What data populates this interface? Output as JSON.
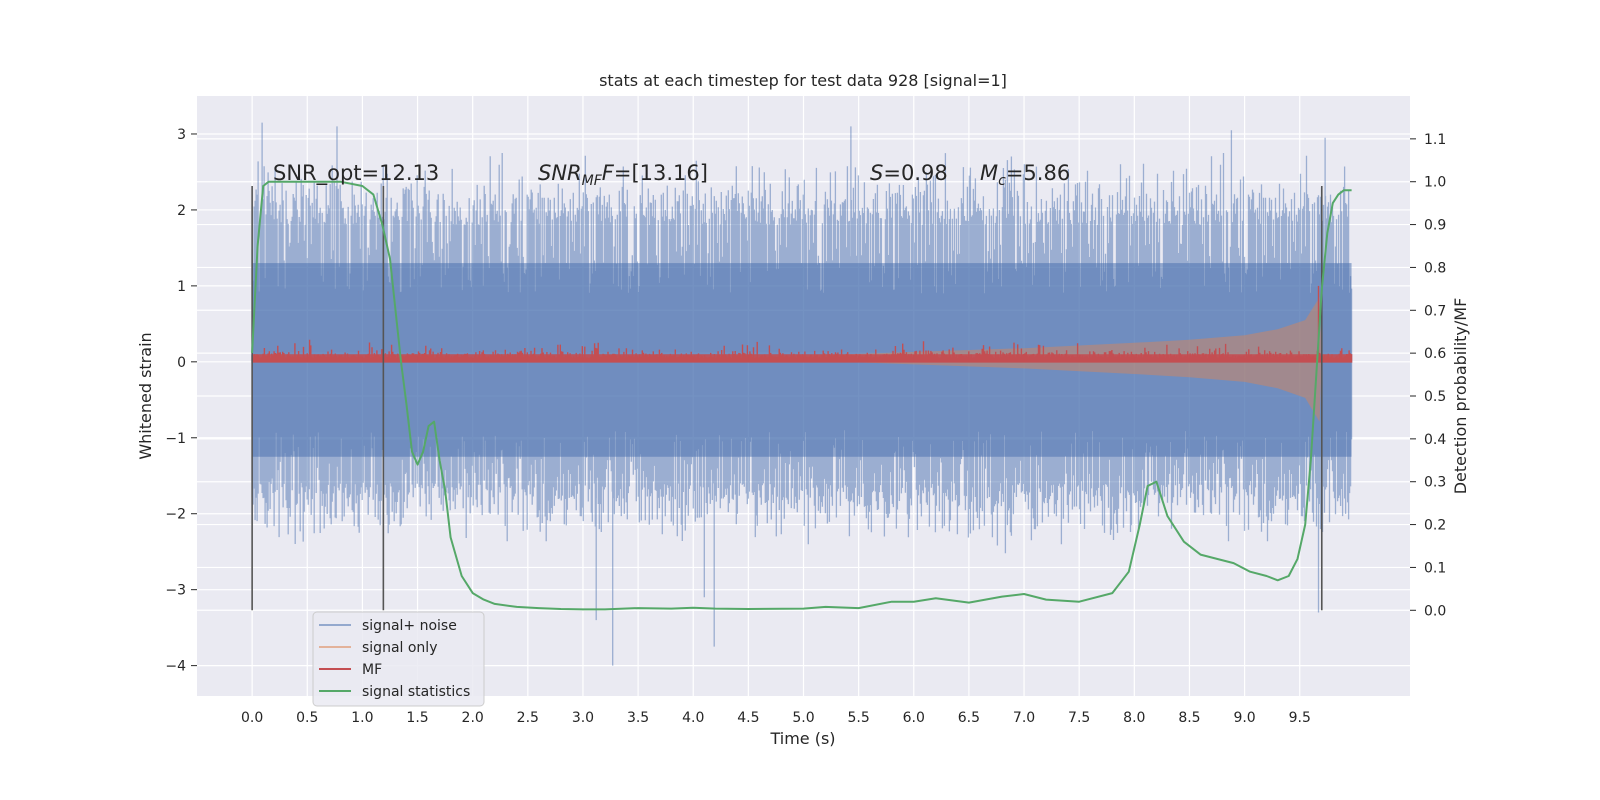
{
  "chart_data": {
    "type": "line",
    "title": "stats at each timestep for test data 928 [signal=1]",
    "xlabel": "Time (s)",
    "ylabel_left": "Whitened strain",
    "ylabel_right": "Detection probability/MF",
    "xlim": [
      -0.5,
      10.5
    ],
    "ylim_left": [
      -4.4,
      3.5
    ],
    "ylim_right": [
      -0.2,
      1.2
    ],
    "xticks": [
      "0.0",
      "0.5",
      "1.0",
      "1.5",
      "2.0",
      "2.5",
      "3.0",
      "3.5",
      "4.0",
      "4.5",
      "5.0",
      "5.5",
      "6.0",
      "6.5",
      "7.0",
      "7.5",
      "8.0",
      "8.5",
      "9.0",
      "9.5"
    ],
    "yticks_left": [
      "3",
      "2",
      "1",
      "0",
      "−1",
      "−2",
      "−3",
      "−4"
    ],
    "yticks_right": [
      "1.1",
      "1.0",
      "0.9",
      "0.8",
      "0.7",
      "0.6",
      "0.5",
      "0.4",
      "0.3",
      "0.2",
      "0.1",
      "0.0"
    ],
    "grid": true,
    "legend_position": "lower-left",
    "annotations": {
      "snr_opt": "SNR_opt=12.13",
      "snr_mf_base": "SNR",
      "snr_mf_sub": "MF",
      "snr_mf_rest": "=[13.16]",
      "s_sym": "S",
      "s_val": "=0.98",
      "mc_base": "M",
      "mc_sub": "c",
      "mc_val": "=5.86"
    },
    "vertical_markers_s": [
      0.0,
      1.19,
      9.7
    ],
    "series": [
      {
        "name": "signal+ noise",
        "color": "#4c72b0",
        "axis": "left",
        "style": "dense noise trace",
        "t_range": [
          0.0,
          9.97
        ],
        "typical_range": [
          -1.6,
          1.8
        ],
        "notable_peaks": [
          [
            0.09,
            3.15
          ],
          [
            0.77,
            3.1
          ],
          [
            5.43,
            3.1
          ],
          [
            8.88,
            3.05
          ],
          [
            9.73,
            2.95
          ],
          [
            3.27,
            -4.0
          ],
          [
            4.19,
            -3.75
          ],
          [
            3.12,
            -3.4
          ],
          [
            4.1,
            -3.1
          ],
          [
            9.67,
            -3.3
          ]
        ]
      },
      {
        "name": "signal only",
        "color": "#dd8452",
        "axis": "left",
        "style": "chirp envelope",
        "t_range": [
          4.5,
          9.7
        ],
        "envelope_amplitude": [
          [
            4.5,
            0.0
          ],
          [
            5.0,
            0.03
          ],
          [
            6.0,
            0.08
          ],
          [
            7.0,
            0.13
          ],
          [
            8.0,
            0.2
          ],
          [
            8.5,
            0.24
          ],
          [
            9.0,
            0.3
          ],
          [
            9.3,
            0.38
          ],
          [
            9.55,
            0.5
          ],
          [
            9.68,
            0.8
          ],
          [
            9.7,
            0.0
          ]
        ]
      },
      {
        "name": "MF",
        "color": "#c44e52",
        "axis": "left",
        "style": "noisy trace",
        "t_range": [
          0.0,
          9.97
        ],
        "baseline": 0.05,
        "typical_spread": [
          0.0,
          0.25
        ],
        "peak": [
          9.67,
          1.0
        ]
      },
      {
        "name": "signal statistics",
        "color": "#55a868",
        "axis": "right",
        "style": "line",
        "x": [
          0.0,
          0.05,
          0.1,
          0.15,
          0.25,
          0.4,
          0.6,
          0.8,
          1.0,
          1.1,
          1.18,
          1.25,
          1.3,
          1.35,
          1.4,
          1.45,
          1.5,
          1.55,
          1.6,
          1.65,
          1.7,
          1.75,
          1.8,
          1.9,
          2.0,
          2.1,
          2.2,
          2.4,
          2.6,
          2.8,
          3.0,
          3.2,
          3.5,
          3.8,
          4.0,
          4.2,
          4.5,
          5.0,
          5.2,
          5.5,
          5.8,
          6.0,
          6.2,
          6.5,
          6.8,
          7.0,
          7.2,
          7.5,
          7.8,
          7.95,
          8.05,
          8.12,
          8.2,
          8.3,
          8.45,
          8.6,
          8.75,
          8.9,
          9.05,
          9.2,
          9.3,
          9.4,
          9.48,
          9.55,
          9.6,
          9.65,
          9.7,
          9.75,
          9.8,
          9.85,
          9.9,
          9.97
        ],
        "y": [
          0.6,
          0.85,
          0.99,
          1.0,
          1.0,
          1.0,
          1.0,
          1.0,
          0.99,
          0.97,
          0.9,
          0.82,
          0.7,
          0.58,
          0.48,
          0.37,
          0.34,
          0.37,
          0.43,
          0.44,
          0.35,
          0.28,
          0.17,
          0.08,
          0.04,
          0.025,
          0.015,
          0.008,
          0.005,
          0.003,
          0.002,
          0.002,
          0.005,
          0.004,
          0.006,
          0.004,
          0.003,
          0.004,
          0.008,
          0.005,
          0.02,
          0.02,
          0.028,
          0.018,
          0.032,
          0.038,
          0.025,
          0.02,
          0.04,
          0.09,
          0.2,
          0.29,
          0.3,
          0.22,
          0.16,
          0.13,
          0.12,
          0.11,
          0.09,
          0.08,
          0.07,
          0.08,
          0.12,
          0.2,
          0.35,
          0.55,
          0.75,
          0.88,
          0.95,
          0.97,
          0.98,
          0.98
        ]
      }
    ]
  }
}
